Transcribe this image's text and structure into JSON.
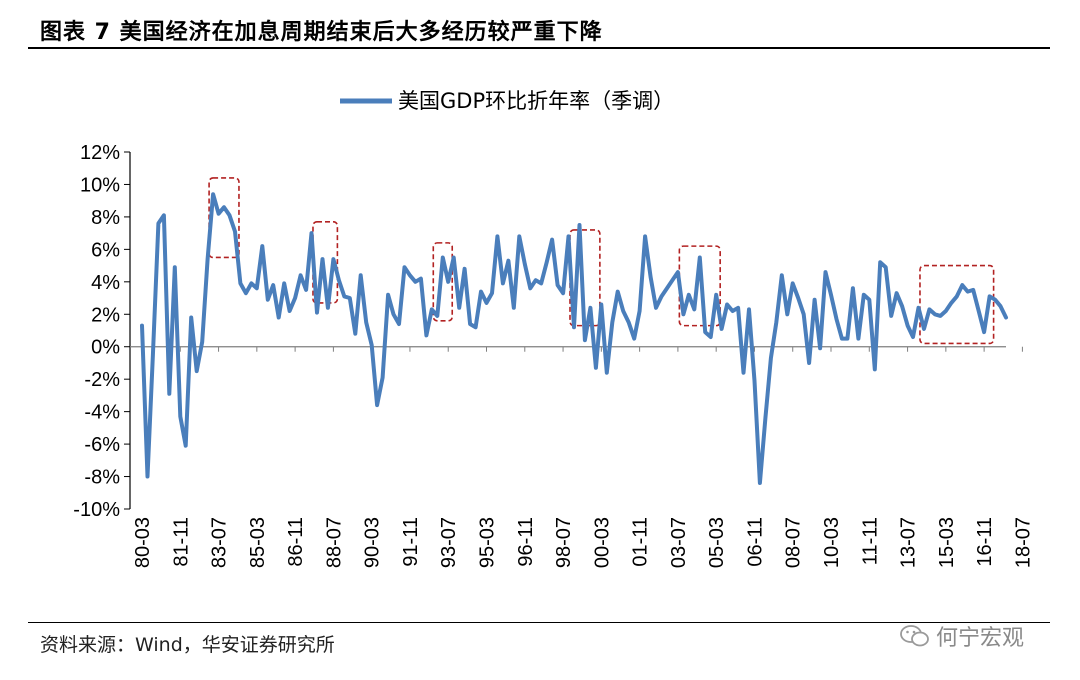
{
  "header": {
    "title": "图表 7  美国经济在加息周期结束后大多经历较严重下降"
  },
  "footer": {
    "source": "资料来源：Wind，华安证券研究所",
    "watermark": "何宁宏观"
  },
  "chart_data": {
    "type": "line",
    "title": "",
    "xlabel": "",
    "ylabel": "",
    "legend": [
      "美国GDP环比折年率（季调）"
    ],
    "legend_position": "top-center",
    "ylim": [
      -10,
      12
    ],
    "y_ticks": [
      "12%",
      "10%",
      "8%",
      "6%",
      "4%",
      "2%",
      "0%",
      "-2%",
      "-4%",
      "-6%",
      "-8%",
      "-10%"
    ],
    "y_tick_values": [
      12,
      10,
      8,
      6,
      4,
      2,
      0,
      -2,
      -4,
      -6,
      -8,
      -10
    ],
    "x_ticks": [
      "80-03",
      "81-11",
      "83-07",
      "85-03",
      "86-11",
      "88-07",
      "90-03",
      "91-11",
      "93-07",
      "95-03",
      "96-11",
      "98-07",
      "00-03",
      "01-11",
      "03-07",
      "05-03",
      "06-11",
      "08-07",
      "10-03",
      "11-11",
      "13-07",
      "15-03",
      "16-11",
      "18-07"
    ],
    "x_tick_quarter_index": [
      0,
      7,
      14,
      21,
      28,
      35,
      42,
      49,
      56,
      63,
      70,
      77,
      84,
      91,
      98,
      105,
      112,
      119,
      126,
      133,
      140,
      147,
      154,
      161
    ],
    "series": [
      {
        "name": "美国GDP环比折年率（季调）",
        "color": "#4a7ebb",
        "start": "1980Q1",
        "values": [
          1.3,
          -8.0,
          -0.5,
          7.6,
          8.1,
          -2.9,
          4.9,
          -4.3,
          -6.1,
          1.8,
          -1.5,
          0.3,
          5.4,
          9.4,
          8.2,
          8.6,
          8.1,
          7.1,
          3.9,
          3.3,
          3.9,
          3.6,
          6.2,
          2.9,
          3.8,
          1.8,
          3.9,
          2.2,
          3.0,
          4.4,
          3.5,
          7.0,
          2.1,
          5.4,
          2.4,
          5.4,
          4.1,
          3.1,
          3.0,
          0.8,
          4.4,
          1.5,
          0.1,
          -3.6,
          -1.9,
          3.2,
          2.0,
          1.4,
          4.9,
          4.4,
          4.0,
          4.2,
          0.7,
          2.3,
          1.9,
          5.5,
          4.0,
          5.5,
          2.4,
          4.8,
          1.4,
          1.2,
          3.4,
          2.7,
          3.3,
          6.8,
          3.9,
          5.3,
          2.4,
          6.8,
          5.1,
          3.6,
          4.1,
          3.9,
          5.2,
          6.6,
          3.8,
          3.3,
          6.8,
          1.2,
          7.5,
          0.4,
          2.4,
          -1.3,
          2.6,
          -1.6,
          1.5,
          3.4,
          2.2,
          1.5,
          0.5,
          2.2,
          6.8,
          4.3,
          2.4,
          3.1,
          3.6,
          4.1,
          4.6,
          2.0,
          3.2,
          2.3,
          5.5,
          0.9,
          0.6,
          3.2,
          1.1,
          2.6,
          2.2,
          2.4,
          -1.6,
          2.3,
          -2.1,
          -8.4,
          -4.4,
          -0.7,
          1.5,
          4.4,
          2.0,
          3.9,
          3.0,
          2.0,
          -1.0,
          2.9,
          -0.1,
          4.6,
          3.2,
          1.7,
          0.5,
          0.5,
          3.6,
          0.5,
          3.2,
          2.9,
          -1.4,
          5.2,
          4.9,
          1.9,
          3.3,
          2.5,
          1.3,
          0.6,
          2.4,
          1.1,
          2.3,
          2.0,
          1.9,
          2.2,
          2.7,
          3.1,
          3.8,
          3.4,
          3.5,
          2.2,
          0.9,
          3.1,
          2.9,
          2.5,
          1.8
        ]
      }
    ],
    "highlight_boxes": [
      {
        "from": "1983Q2",
        "to": "1984Q2",
        "y_range": [
          5.5,
          10.4
        ]
      },
      {
        "from": "1988Q1",
        "to": "1988Q4",
        "y_range": [
          2.7,
          7.7
        ]
      },
      {
        "from": "1993Q3",
        "to": "1994Q1",
        "y_range": [
          1.6,
          6.4
        ]
      },
      {
        "from": "1999Q4",
        "to": "2000Q4",
        "y_range": [
          1.3,
          7.2
        ]
      },
      {
        "from": "2004Q4",
        "to": "2006Q2",
        "y_range": [
          1.3,
          6.2
        ]
      },
      {
        "from": "2015Q4",
        "to": "2018Q4",
        "y_range": [
          0.2,
          5.0
        ]
      }
    ]
  }
}
